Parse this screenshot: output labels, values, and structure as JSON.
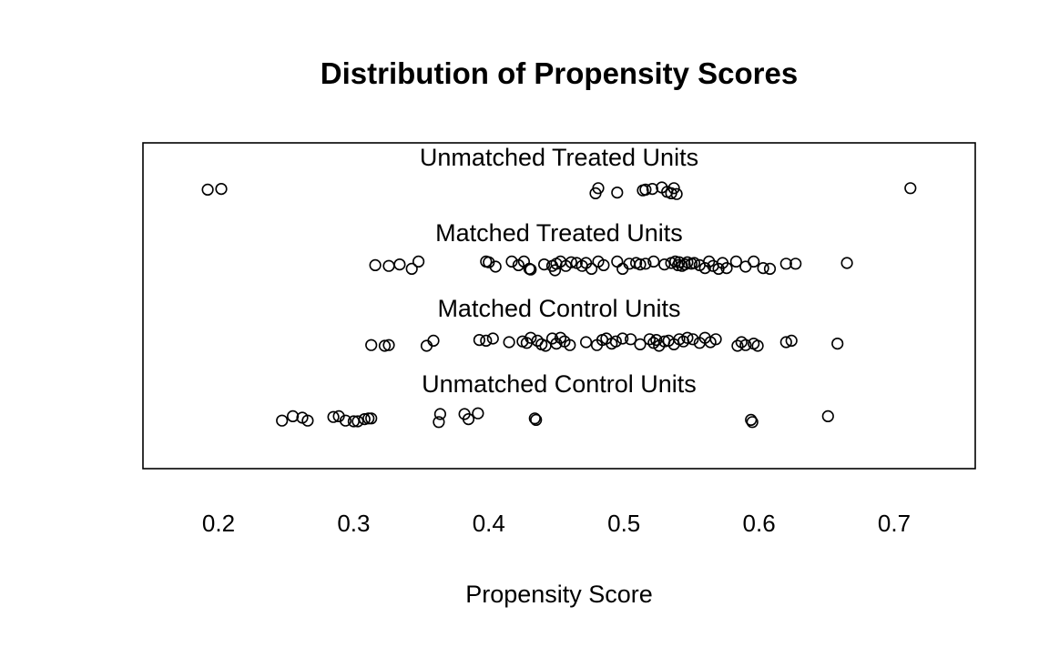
{
  "chart_data": {
    "type": "scatter",
    "title": "Distribution of Propensity Scores",
    "xlabel": "Propensity Score",
    "ylabel": "",
    "xlim": [
      0.14,
      0.76
    ],
    "xticks": [
      "0.2",
      "0.3",
      "0.4",
      "0.5",
      "0.6",
      "0.7"
    ],
    "grid": false,
    "groups": [
      {
        "name": "Unmatched Treated Units",
        "x": [
          0.192,
          0.202,
          0.479,
          0.481,
          0.495,
          0.514,
          0.516,
          0.521,
          0.528,
          0.532,
          0.535,
          0.537,
          0.539,
          0.712
        ],
        "jitter": [
          0.1,
          0.15,
          -0.15,
          0.2,
          -0.1,
          0.05,
          0.1,
          0.15,
          0.25,
          -0.05,
          -0.15,
          0.2,
          -0.2,
          0.2
        ]
      },
      {
        "name": "Matched Treated Units",
        "x": [
          0.316,
          0.326,
          0.334,
          0.343,
          0.348,
          0.398,
          0.4,
          0.405,
          0.417,
          0.422,
          0.426,
          0.43,
          0.431,
          0.441,
          0.447,
          0.449,
          0.45,
          0.453,
          0.457,
          0.461,
          0.465,
          0.469,
          0.472,
          0.476,
          0.481,
          0.485,
          0.495,
          0.499,
          0.504,
          0.509,
          0.512,
          0.516,
          0.522,
          0.53,
          0.535,
          0.538,
          0.54,
          0.541,
          0.543,
          0.545,
          0.547,
          0.55,
          0.552,
          0.556,
          0.56,
          0.563,
          0.566,
          0.57,
          0.573,
          0.576,
          0.583,
          0.59,
          0.596,
          0.603,
          0.608,
          0.62,
          0.627,
          0.665
        ],
        "jitter": [
          0.1,
          0.05,
          0.15,
          -0.15,
          0.35,
          0.35,
          0.3,
          0.0,
          0.35,
          0.1,
          0.35,
          -0.15,
          -0.2,
          0.15,
          0.05,
          -0.25,
          0.2,
          0.35,
          0.05,
          0.3,
          0.25,
          0.05,
          0.25,
          -0.15,
          0.35,
          0.1,
          0.35,
          -0.15,
          0.2,
          0.25,
          0.15,
          0.2,
          0.35,
          0.15,
          0.25,
          0.35,
          0.1,
          0.3,
          0.05,
          0.15,
          0.3,
          0.2,
          0.25,
          0.1,
          -0.1,
          0.35,
          0.05,
          -0.15,
          0.25,
          -0.1,
          0.35,
          0.0,
          0.35,
          -0.1,
          -0.15,
          0.2,
          0.2,
          0.25
        ],
        "label_position": "above"
      },
      {
        "name": "Matched Control Units",
        "x": [
          0.313,
          0.323,
          0.326,
          0.354,
          0.359,
          0.393,
          0.398,
          0.403,
          0.415,
          0.425,
          0.428,
          0.431,
          0.436,
          0.439,
          0.442,
          0.447,
          0.45,
          0.453,
          0.456,
          0.46,
          0.472,
          0.48,
          0.484,
          0.487,
          0.491,
          0.494,
          0.499,
          0.505,
          0.512,
          0.519,
          0.522,
          0.524,
          0.526,
          0.53,
          0.533,
          0.537,
          0.541,
          0.544,
          0.547,
          0.551,
          0.556,
          0.56,
          0.564,
          0.568,
          0.584,
          0.587,
          0.59,
          0.596,
          0.599,
          0.62,
          0.624,
          0.658
        ],
        "jitter": [
          -0.2,
          -0.25,
          -0.2,
          -0.25,
          0.1,
          0.15,
          0.1,
          0.25,
          0.0,
          0.05,
          -0.05,
          0.3,
          0.1,
          -0.15,
          -0.25,
          0.25,
          -0.1,
          0.3,
          0.05,
          -0.2,
          0.0,
          -0.2,
          0.15,
          0.25,
          -0.1,
          0.05,
          0.25,
          0.2,
          -0.15,
          0.2,
          -0.05,
          0.15,
          -0.25,
          0.05,
          0.1,
          -0.15,
          0.2,
          0.05,
          0.3,
          0.2,
          -0.05,
          0.3,
          0.0,
          0.2,
          -0.25,
          0.0,
          -0.2,
          -0.1,
          -0.25,
          0.0,
          0.1,
          -0.1
        ],
        "label_position": "above"
      },
      {
        "name": "Unmatched Control Units",
        "x": [
          0.247,
          0.255,
          0.262,
          0.266,
          0.285,
          0.289,
          0.294,
          0.3,
          0.303,
          0.308,
          0.311,
          0.313,
          0.363,
          0.364,
          0.382,
          0.385,
          0.392,
          0.434,
          0.435,
          0.594,
          0.595,
          0.651
        ],
        "jitter": [
          -0.2,
          0.1,
          0.0,
          -0.2,
          0.05,
          0.1,
          -0.2,
          -0.25,
          -0.25,
          -0.1,
          -0.05,
          -0.05,
          -0.3,
          0.25,
          0.25,
          -0.1,
          0.3,
          -0.05,
          -0.15,
          -0.15,
          -0.3,
          0.1
        ]
      }
    ]
  }
}
